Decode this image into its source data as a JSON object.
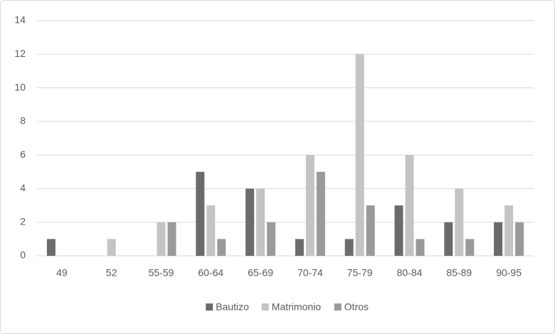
{
  "chart_data": {
    "type": "bar",
    "categories": [
      "49",
      "52",
      "55-59",
      "60-64",
      "65-69",
      "70-74",
      "75-79",
      "80-84",
      "85-89",
      "90-95"
    ],
    "series": [
      {
        "name": "Bautizo",
        "color": "#6b6b6b",
        "values": [
          1,
          0,
          0,
          5,
          4,
          1,
          1,
          3,
          2,
          2
        ]
      },
      {
        "name": "Matrimonio",
        "color": "#c4c4c4",
        "values": [
          0,
          1,
          2,
          3,
          4,
          6,
          12,
          6,
          4,
          3
        ]
      },
      {
        "name": "Otros",
        "color": "#9a9a9a",
        "values": [
          0,
          0,
          2,
          1,
          2,
          5,
          3,
          1,
          1,
          2
        ]
      }
    ],
    "ylim": [
      0,
      14
    ],
    "yticks": [
      0,
      2,
      4,
      6,
      8,
      10,
      12,
      14
    ],
    "grid": true,
    "legend": "bottom"
  }
}
